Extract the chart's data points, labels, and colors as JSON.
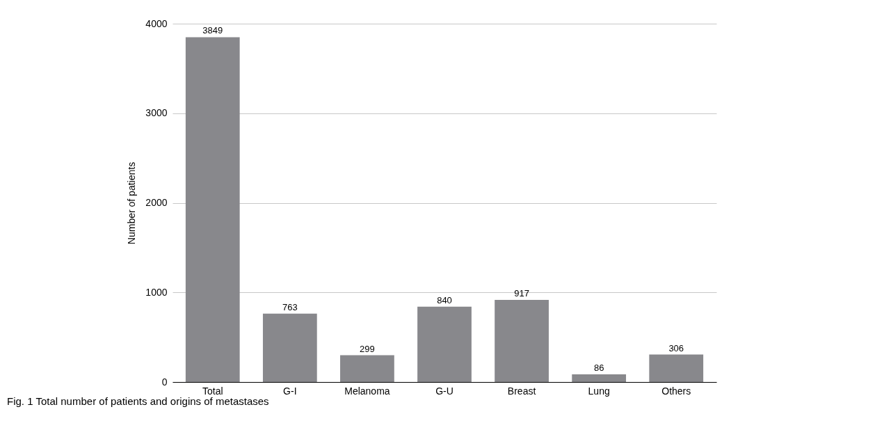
{
  "chart_data": {
    "type": "bar",
    "categories": [
      "Total",
      "G-I",
      "Melanoma",
      "G-U",
      "Breast",
      "Lung",
      "Others"
    ],
    "values": [
      3849,
      763,
      299,
      840,
      917,
      86,
      306
    ],
    "color": "#88888c",
    "ylabel": "Number of patients",
    "ylim": [
      0,
      4000
    ],
    "yticks": [
      0,
      1000,
      2000,
      3000,
      4000
    ],
    "grid": "y",
    "data_labels": true,
    "annotations": [
      "Fig. 1 Total number of patients and origins of metastases"
    ]
  }
}
